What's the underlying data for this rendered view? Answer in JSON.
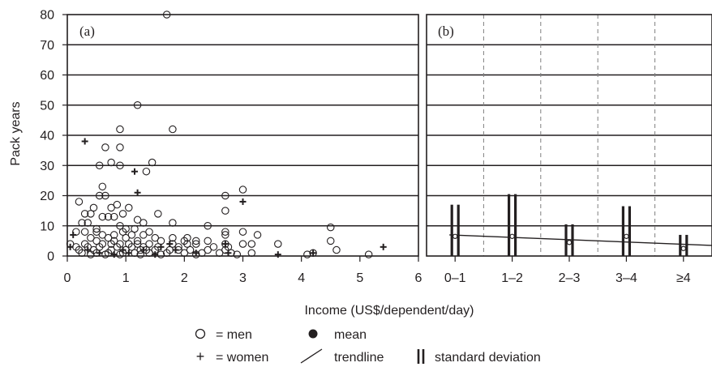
{
  "chart_data": [
    {
      "panel": "(a)",
      "type": "scatter",
      "xlabel": "Income (US$/dependent/day)",
      "ylabel": "Pack years",
      "xlim": [
        0,
        6
      ],
      "ylim": [
        0,
        80
      ],
      "xticks": [
        "0",
        "1",
        "2",
        "3",
        "4",
        "5",
        "6"
      ],
      "yticks": [
        "0",
        "10",
        "20",
        "30",
        "40",
        "50",
        "60",
        "70",
        "80"
      ],
      "grid": "horizontal",
      "series": [
        {
          "name": "men",
          "marker": "open-circle",
          "points": [
            [
              1.7,
              80
            ],
            [
              1.2,
              50
            ],
            [
              0.9,
              42
            ],
            [
              1.8,
              42
            ],
            [
              0.65,
              36
            ],
            [
              0.9,
              36
            ],
            [
              0.75,
              31
            ],
            [
              1.45,
              31
            ],
            [
              0.55,
              30
            ],
            [
              0.9,
              30
            ],
            [
              1.35,
              28
            ],
            [
              0.6,
              23
            ],
            [
              0.55,
              20
            ],
            [
              0.65,
              20
            ],
            [
              2.7,
              20
            ],
            [
              3.0,
              22
            ],
            [
              0.85,
              17
            ],
            [
              0.2,
              18
            ],
            [
              0.45,
              16
            ],
            [
              0.75,
              16
            ],
            [
              1.05,
              16
            ],
            [
              0.95,
              14
            ],
            [
              0.3,
              14
            ],
            [
              0.4,
              14
            ],
            [
              0.6,
              13
            ],
            [
              0.8,
              13
            ],
            [
              0.7,
              13
            ],
            [
              1.55,
              14
            ],
            [
              2.7,
              15
            ],
            [
              1.2,
              12
            ],
            [
              0.25,
              11
            ],
            [
              0.35,
              11
            ],
            [
              1.3,
              11
            ],
            [
              1.8,
              11
            ],
            [
              0.9,
              10
            ],
            [
              2.4,
              10
            ],
            [
              0.5,
              9
            ],
            [
              1.0,
              9
            ],
            [
              1.15,
              9
            ],
            [
              0.15,
              8
            ],
            [
              0.3,
              8
            ],
            [
              0.5,
              8
            ],
            [
              1.4,
              8
            ],
            [
              2.7,
              8
            ],
            [
              3.0,
              8
            ],
            [
              0.6,
              7
            ],
            [
              0.8,
              7
            ],
            [
              1.1,
              7
            ],
            [
              1.3,
              7
            ],
            [
              2.7,
              7
            ],
            [
              3.25,
              7
            ],
            [
              0.4,
              6
            ],
            [
              0.7,
              6
            ],
            [
              1.0,
              6
            ],
            [
              1.5,
              6
            ],
            [
              1.8,
              6
            ],
            [
              2.05,
              6
            ],
            [
              0.5,
              5
            ],
            [
              0.8,
              5
            ],
            [
              1.2,
              5
            ],
            [
              1.6,
              5
            ],
            [
              2.0,
              5
            ],
            [
              2.2,
              5
            ],
            [
              2.4,
              5
            ],
            [
              4.5,
              5
            ],
            [
              0.3,
              4
            ],
            [
              0.6,
              4
            ],
            [
              0.9,
              4
            ],
            [
              1.2,
              4
            ],
            [
              1.4,
              4
            ],
            [
              1.8,
              4
            ],
            [
              2.05,
              4
            ],
            [
              2.2,
              4
            ],
            [
              2.7,
              4
            ],
            [
              3.0,
              4
            ],
            [
              3.15,
              4
            ],
            [
              3.6,
              4
            ],
            [
              0.35,
              3
            ],
            [
              0.55,
              3
            ],
            [
              0.85,
              3
            ],
            [
              1.1,
              3
            ],
            [
              1.3,
              3
            ],
            [
              1.55,
              3
            ],
            [
              1.9,
              3
            ],
            [
              2.5,
              3
            ],
            [
              2.75,
              3
            ],
            [
              0.45,
              2
            ],
            [
              0.75,
              2
            ],
            [
              1.0,
              2
            ],
            [
              1.25,
              2
            ],
            [
              1.5,
              2
            ],
            [
              1.75,
              2
            ],
            [
              2.1,
              2
            ],
            [
              2.4,
              2
            ],
            [
              2.7,
              2
            ],
            [
              4.6,
              2
            ],
            [
              0.25,
              1
            ],
            [
              0.5,
              1
            ],
            [
              0.7,
              1
            ],
            [
              0.95,
              1
            ],
            [
              1.15,
              1
            ],
            [
              1.4,
              1
            ],
            [
              1.7,
              1
            ],
            [
              2.0,
              1
            ],
            [
              2.3,
              1
            ],
            [
              2.6,
              1
            ],
            [
              2.8,
              1
            ],
            [
              3.15,
              1
            ],
            [
              4.2,
              1
            ],
            [
              0.4,
              0.5
            ],
            [
              0.65,
              0.5
            ],
            [
              0.9,
              0.5
            ],
            [
              1.25,
              0.5
            ],
            [
              1.6,
              0.5
            ],
            [
              2.2,
              0.5
            ],
            [
              2.9,
              0.5
            ],
            [
              4.1,
              0.5
            ],
            [
              5.15,
              0.5
            ],
            [
              0.05,
              4
            ],
            [
              0.15,
              3
            ],
            [
              0.2,
              2
            ],
            [
              0.95,
              8
            ],
            [
              1.05,
              4
            ],
            [
              0.75,
              4
            ],
            [
              1.35,
              2
            ],
            [
              1.9,
              2
            ],
            [
              4.5,
              9.5
            ]
          ]
        },
        {
          "name": "women",
          "marker": "plus",
          "points": [
            [
              0.3,
              38
            ],
            [
              1.15,
              28
            ],
            [
              1.2,
              21
            ],
            [
              3.0,
              18
            ],
            [
              0.1,
              7
            ],
            [
              0.05,
              3
            ],
            [
              2.7,
              4
            ],
            [
              5.4,
              3
            ],
            [
              1.6,
              3
            ],
            [
              1.85,
              2
            ],
            [
              1.3,
              2
            ],
            [
              1.05,
              1
            ],
            [
              0.55,
              1
            ],
            [
              0.8,
              0.5
            ],
            [
              1.5,
              0.5
            ],
            [
              2.2,
              1
            ],
            [
              4.2,
              1
            ],
            [
              3.6,
              0.5
            ],
            [
              0.95,
              2
            ],
            [
              0.35,
              2
            ],
            [
              1.75,
              4
            ],
            [
              2.75,
              1
            ]
          ]
        }
      ]
    },
    {
      "panel": "(b)",
      "type": "bar",
      "categories": [
        "0–1",
        "1–2",
        "2–3",
        "3–4",
        "≥4"
      ],
      "ylim": [
        0,
        80
      ],
      "grid": "horizontal + vertical dashed",
      "means": [
        6.5,
        6.5,
        4.5,
        6.5,
        2.5
      ],
      "standard_deviation": [
        17,
        20.5,
        10.5,
        16.5,
        7
      ],
      "trendline": {
        "start": 7,
        "end": 3.5
      }
    }
  ],
  "legend": {
    "men": "= men",
    "women": "= women",
    "mean": "mean",
    "trendline": "trendline",
    "sd": "standard deviation",
    "men_symbol": "○",
    "women_symbol": "+"
  },
  "colors": {
    "ink": "#231f20",
    "dashed_grid": "#7f7f7f"
  }
}
